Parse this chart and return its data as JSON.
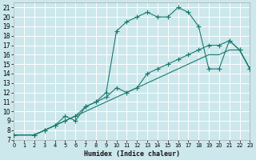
{
  "xlabel": "Humidex (Indice chaleur)",
  "background_color": "#cce8ec",
  "grid_color": "#ffffff",
  "line_color": "#1a7a6e",
  "xlim": [
    0,
    23
  ],
  "ylim": [
    7,
    21.5
  ],
  "xticks": [
    0,
    1,
    2,
    3,
    4,
    5,
    6,
    7,
    8,
    9,
    10,
    11,
    12,
    13,
    14,
    15,
    16,
    17,
    18,
    19,
    20,
    21,
    22,
    23
  ],
  "yticks": [
    7,
    8,
    9,
    10,
    11,
    12,
    13,
    14,
    15,
    16,
    17,
    18,
    19,
    20,
    21
  ],
  "line1_x": [
    0,
    2,
    3,
    4,
    5,
    6,
    7,
    8,
    9,
    10,
    11,
    12,
    13,
    14,
    15,
    16,
    17,
    18,
    19,
    20,
    21,
    22,
    23
  ],
  "line1_y": [
    7.5,
    7.5,
    8.0,
    8.5,
    9.0,
    9.5,
    10.0,
    10.5,
    11.0,
    11.5,
    12.0,
    12.5,
    13.0,
    13.5,
    14.0,
    14.5,
    15.0,
    15.5,
    16.0,
    16.0,
    16.5,
    16.5,
    14.5
  ],
  "line2_x": [
    0,
    2,
    3,
    4,
    5,
    6,
    7,
    8,
    9,
    10,
    11,
    12,
    13,
    14,
    15,
    16,
    17,
    18,
    19,
    20,
    21,
    22,
    23
  ],
  "line2_y": [
    7.5,
    7.5,
    8.0,
    8.5,
    9.5,
    9.0,
    10.5,
    11.0,
    12.0,
    18.5,
    19.5,
    20.0,
    20.5,
    20.0,
    20.0,
    21.0,
    20.5,
    19.0,
    14.5,
    14.5,
    17.5,
    16.5,
    14.5
  ],
  "line3_x": [
    0,
    2,
    3,
    4,
    5,
    6,
    7,
    8,
    9,
    10,
    11,
    12,
    13,
    14,
    15,
    16,
    17,
    18,
    19,
    20,
    21,
    22,
    23
  ],
  "line3_y": [
    7.5,
    7.5,
    8.0,
    8.5,
    9.0,
    9.5,
    10.5,
    11.0,
    11.5,
    12.5,
    12.0,
    12.5,
    14.0,
    14.5,
    15.0,
    15.5,
    16.0,
    16.5,
    17.0,
    17.0,
    17.5,
    16.5,
    14.5
  ]
}
